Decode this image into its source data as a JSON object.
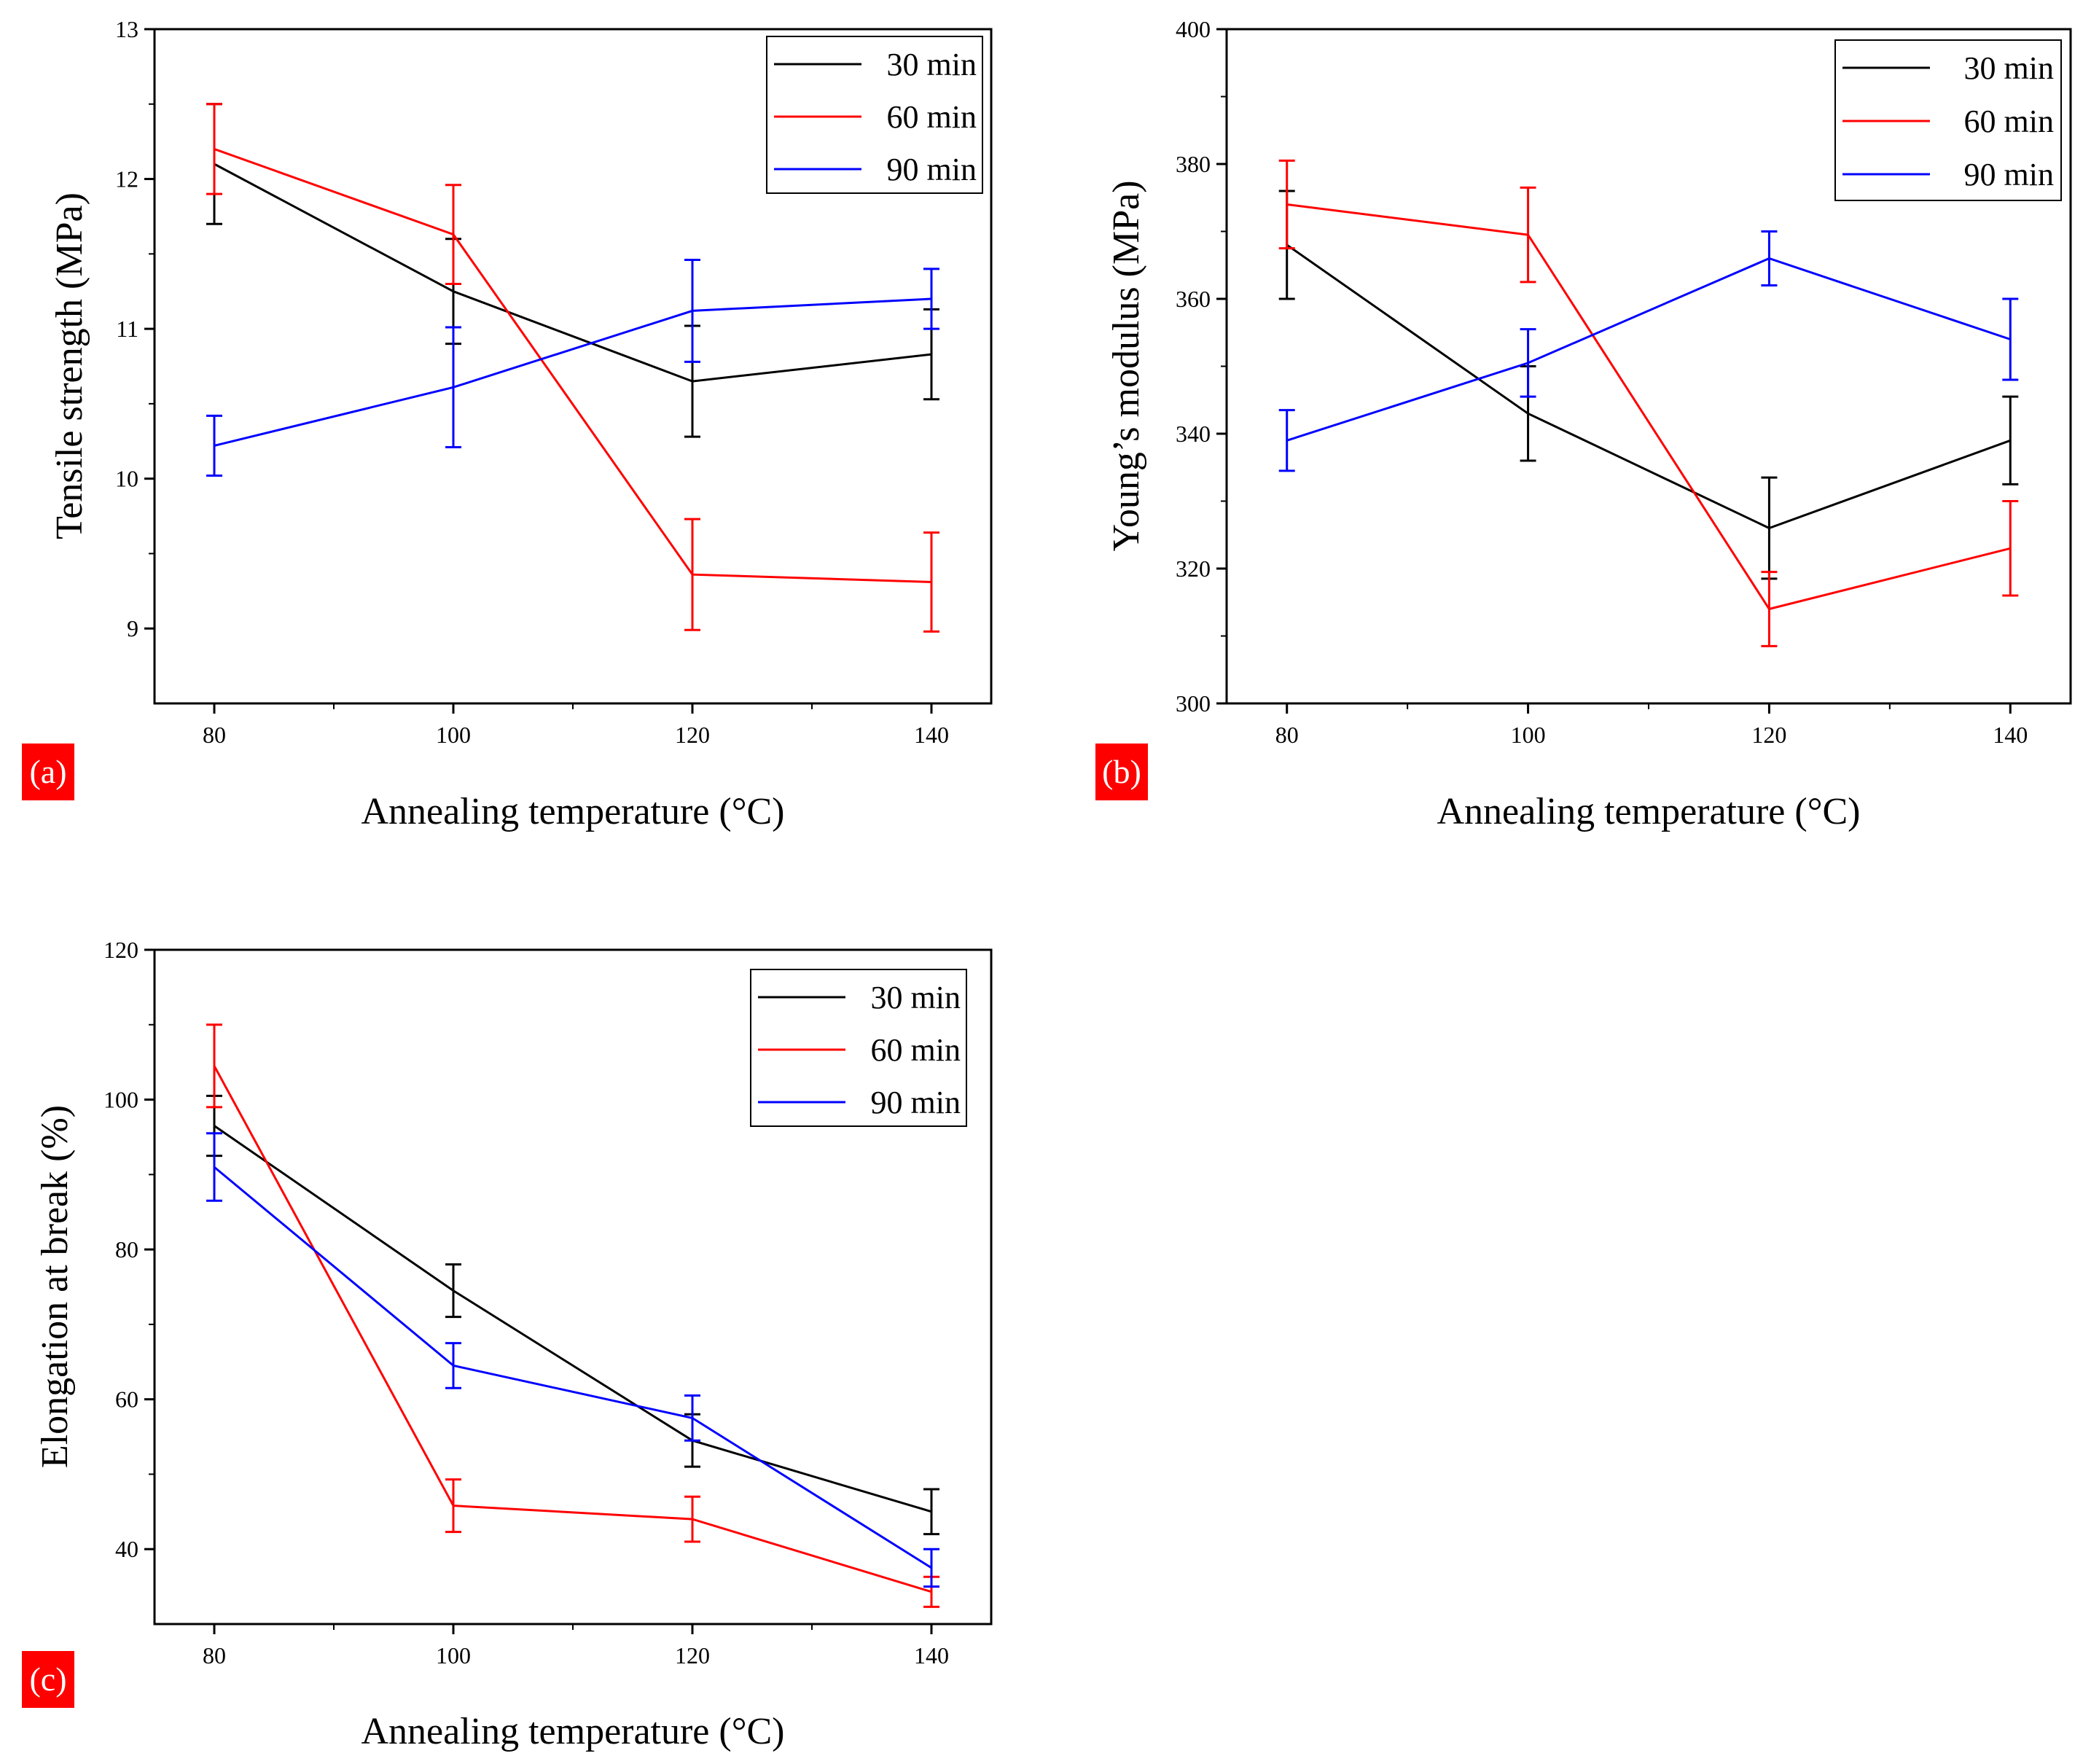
{
  "chart_data": [
    {
      "type": "line",
      "panel_label": "(a)",
      "xlabel": "Annealing temperature (°C)",
      "ylabel": "Tensile strength (MPa)",
      "x": [
        80,
        100,
        120,
        140
      ],
      "xlim": [
        75,
        145
      ],
      "ylim": [
        8.5,
        13
      ],
      "xticks": [
        80,
        100,
        120,
        140
      ],
      "yticks": [
        9,
        10,
        11,
        12,
        13
      ],
      "legend_position": "top-right",
      "series": [
        {
          "name": "30 min",
          "color": "#000000",
          "values": [
            12.1,
            11.25,
            10.65,
            10.83
          ],
          "errors": [
            0.4,
            0.35,
            0.37,
            0.3
          ]
        },
        {
          "name": "60 min",
          "color": "#ff0000",
          "values": [
            12.2,
            11.63,
            9.36,
            9.31
          ],
          "errors": [
            0.3,
            0.33,
            0.37,
            0.33
          ]
        },
        {
          "name": "90 min",
          "color": "#0000ff",
          "values": [
            10.22,
            10.61,
            11.12,
            11.2
          ],
          "errors": [
            0.2,
            0.4,
            0.34,
            0.2
          ]
        }
      ]
    },
    {
      "type": "line",
      "panel_label": "(b)",
      "xlabel": "Annealing temperature (°C)",
      "ylabel": "Young’s modulus (MPa)",
      "x": [
        80,
        100,
        120,
        140
      ],
      "xlim": [
        75,
        145
      ],
      "ylim": [
        300,
        400
      ],
      "xticks": [
        80,
        100,
        120,
        140
      ],
      "yticks": [
        300,
        320,
        340,
        360,
        380,
        400
      ],
      "legend_position": "top-right",
      "series": [
        {
          "name": "30 min",
          "color": "#000000",
          "values": [
            368,
            343,
            326,
            339
          ],
          "errors": [
            8,
            7,
            7.5,
            6.5
          ]
        },
        {
          "name": "60 min",
          "color": "#ff0000",
          "values": [
            374,
            369.5,
            314,
            323
          ],
          "errors": [
            6.5,
            7,
            5.5,
            7
          ]
        },
        {
          "name": "90 min",
          "color": "#0000ff",
          "values": [
            339,
            350.5,
            366,
            354
          ],
          "errors": [
            4.5,
            5,
            4,
            6
          ]
        }
      ]
    },
    {
      "type": "line",
      "panel_label": "(c)",
      "xlabel": "Annealing temperature (°C)",
      "ylabel": "Elongation at break (%)",
      "x": [
        80,
        100,
        120,
        140
      ],
      "xlim": [
        75,
        145
      ],
      "ylim": [
        30,
        120
      ],
      "xticks": [
        80,
        100,
        120,
        140
      ],
      "yticks": [
        40,
        60,
        80,
        100,
        120
      ],
      "legend_position": "top-right",
      "series": [
        {
          "name": "30 min",
          "color": "#000000",
          "values": [
            96.5,
            74.5,
            54.5,
            45
          ],
          "errors": [
            4,
            3.5,
            3.5,
            3
          ]
        },
        {
          "name": "60 min",
          "color": "#ff0000",
          "values": [
            104.5,
            45.8,
            44,
            34.3
          ],
          "errors": [
            5.5,
            3.5,
            3,
            2
          ]
        },
        {
          "name": "90 min",
          "color": "#0000ff",
          "values": [
            91,
            64.5,
            57.5,
            37.5
          ],
          "errors": [
            4.5,
            3,
            3,
            2.5
          ]
        }
      ]
    }
  ]
}
